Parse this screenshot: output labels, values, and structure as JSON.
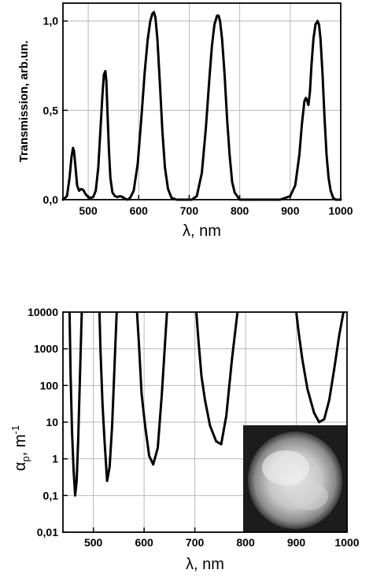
{
  "chart_data": [
    {
      "type": "line",
      "xlabel": "λ, nm",
      "ylabel": "Transmission, arb.un.",
      "xlim": [
        450,
        1000
      ],
      "ylim": [
        0,
        1.1
      ],
      "xticks": [
        "500",
        "600",
        "700",
        "800",
        "900",
        "1000"
      ],
      "yticks": [
        "0,0",
        "0,5",
        "1,0"
      ],
      "grid": true,
      "series": [
        {
          "x": [
            450,
            458,
            463,
            467,
            470,
            472,
            475,
            478,
            482,
            486,
            490,
            495,
            500,
            505,
            510,
            515,
            520,
            524,
            528,
            531,
            534,
            536,
            538,
            541,
            544,
            548,
            553,
            558,
            563,
            568,
            573,
            578,
            583,
            590,
            598,
            605,
            612,
            618,
            623,
            627,
            630,
            633,
            637,
            642,
            647,
            652,
            658,
            665,
            675,
            690,
            705,
            715,
            725,
            733,
            740,
            745,
            750,
            755,
            758,
            761,
            765,
            770,
            775,
            780,
            785,
            790,
            800,
            840,
            880,
            900,
            910,
            918,
            923,
            928,
            931,
            934,
            936,
            939,
            942,
            946,
            950,
            954,
            957,
            960,
            964,
            968,
            972,
            976,
            980,
            985,
            990,
            1000
          ],
          "y": [
            0.0,
            0.02,
            0.12,
            0.24,
            0.29,
            0.27,
            0.18,
            0.08,
            0.05,
            0.06,
            0.055,
            0.03,
            0.015,
            0.01,
            0.015,
            0.05,
            0.18,
            0.38,
            0.58,
            0.7,
            0.72,
            0.66,
            0.5,
            0.28,
            0.12,
            0.04,
            0.02,
            0.015,
            0.02,
            0.015,
            0.005,
            0.0,
            0.01,
            0.05,
            0.2,
            0.45,
            0.72,
            0.9,
            1.0,
            1.04,
            1.05,
            1.02,
            0.9,
            0.65,
            0.38,
            0.18,
            0.06,
            0.01,
            0.0,
            0.0,
            0.0,
            0.02,
            0.15,
            0.4,
            0.68,
            0.86,
            0.98,
            1.03,
            1.03,
            1.0,
            0.9,
            0.7,
            0.45,
            0.25,
            0.1,
            0.04,
            0.0,
            0.0,
            0.0,
            0.02,
            0.08,
            0.25,
            0.42,
            0.55,
            0.57,
            0.55,
            0.53,
            0.6,
            0.75,
            0.9,
            0.98,
            1.0,
            0.98,
            0.9,
            0.7,
            0.45,
            0.25,
            0.12,
            0.05,
            0.01,
            0.0,
            0.0
          ]
        }
      ]
    },
    {
      "type": "line",
      "xlabel": "λ, nm",
      "ylabel_main": "α",
      "ylabel_sub": "p",
      "ylabel_unit": ", m",
      "ylabel_exp": "-1",
      "xlim": [
        440,
        1000
      ],
      "yscale": "log",
      "ylim": [
        0.01,
        10000
      ],
      "xticks": [
        "500",
        "600",
        "700",
        "800",
        "900",
        "1000"
      ],
      "yticks": [
        "0,01",
        "0,1",
        "1",
        "10",
        "100",
        "1000",
        "10000"
      ],
      "grid": true,
      "inset": "grayscale photo of a round beam spot",
      "series": [
        {
          "segments": [
            {
              "x": [
                453,
                455,
                458,
                461,
                464,
                467,
                470,
                473,
                477
              ],
              "y": [
                10000,
                200,
                5,
                0.5,
                0.1,
                0.25,
                3,
                100,
                10000
              ]
            },
            {
              "x": [
                512,
                514,
                518,
                522,
                527,
                532,
                537,
                541,
                546
              ],
              "y": [
                10000,
                900,
                30,
                3,
                0.25,
                0.6,
                8,
                200,
                10000
              ]
            },
            {
              "x": [
                586,
                590,
                595,
                602,
                610,
                618,
                627,
                635,
                645
              ],
              "y": [
                10000,
                1200,
                60,
                8,
                1.2,
                0.7,
                2,
                60,
                10000
              ]
            },
            {
              "x": [
                703,
                707,
                713,
                720,
                730,
                742,
                752,
                762,
                773,
                784
              ],
              "y": [
                10000,
                1800,
                180,
                40,
                8,
                3,
                2.5,
                15,
                500,
                10000
              ]
            },
            {
              "x": [
                900,
                905,
                912,
                922,
                935,
                945,
                955,
                965,
                975,
                985,
                993
              ],
              "y": [
                10000,
                2500,
                500,
                80,
                18,
                10,
                12,
                40,
                300,
                2500,
                10000
              ]
            }
          ]
        }
      ]
    }
  ]
}
